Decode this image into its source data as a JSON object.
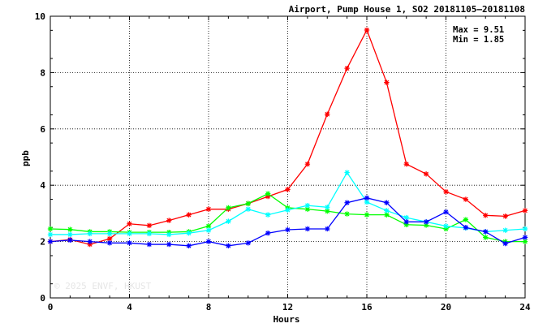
{
  "chart_data": {
    "type": "line",
    "title": "Airport, Pump House 1, SO2 20181105–20181108",
    "xlabel": "Hours",
    "ylabel": "ppb",
    "xlim": [
      0,
      24
    ],
    "ylim": [
      0,
      10
    ],
    "x_ticks": [
      0,
      4,
      8,
      12,
      16,
      20,
      24
    ],
    "y_ticks": [
      0,
      2,
      4,
      6,
      8,
      10
    ],
    "grid": true,
    "stats": {
      "max_label": "Max = 9.51",
      "min_label": "Min = 1.85"
    },
    "watermark": "© 2025  ENVF, HKUST",
    "x": [
      0,
      1,
      2,
      3,
      4,
      5,
      6,
      7,
      8,
      9,
      10,
      11,
      12,
      13,
      14,
      15,
      16,
      17,
      18,
      19,
      20,
      21,
      22,
      23,
      24
    ],
    "series": [
      {
        "color": "#ff0000",
        "values": [
          2.0,
          2.07,
          1.9,
          2.1,
          2.63,
          2.57,
          2.75,
          2.95,
          3.15,
          3.15,
          3.35,
          3.6,
          3.85,
          4.75,
          6.52,
          8.15,
          9.51,
          7.65,
          4.75,
          4.4,
          3.77,
          3.5,
          2.93,
          2.9,
          3.1
        ]
      },
      {
        "color": "#00ff00",
        "values": [
          2.45,
          2.43,
          2.35,
          2.35,
          2.33,
          2.33,
          2.33,
          2.35,
          2.55,
          3.2,
          3.35,
          3.7,
          3.2,
          3.15,
          3.08,
          2.98,
          2.95,
          2.95,
          2.6,
          2.58,
          2.45,
          2.78,
          2.15,
          2.0,
          2.0
        ]
      },
      {
        "color": "#00ffff",
        "values": [
          2.25,
          2.25,
          2.28,
          2.28,
          2.28,
          2.28,
          2.25,
          2.3,
          2.4,
          2.72,
          3.15,
          2.95,
          3.12,
          3.28,
          3.22,
          4.45,
          3.4,
          3.1,
          2.85,
          2.7,
          2.55,
          2.48,
          2.35,
          2.4,
          2.45
        ]
      },
      {
        "color": "#0000ff",
        "values": [
          2.0,
          2.05,
          2.0,
          1.95,
          1.95,
          1.9,
          1.9,
          1.85,
          2.0,
          1.85,
          1.95,
          2.3,
          2.42,
          2.45,
          2.45,
          3.38,
          3.55,
          3.38,
          2.7,
          2.7,
          3.05,
          2.5,
          2.35,
          1.93,
          2.15
        ]
      }
    ]
  }
}
